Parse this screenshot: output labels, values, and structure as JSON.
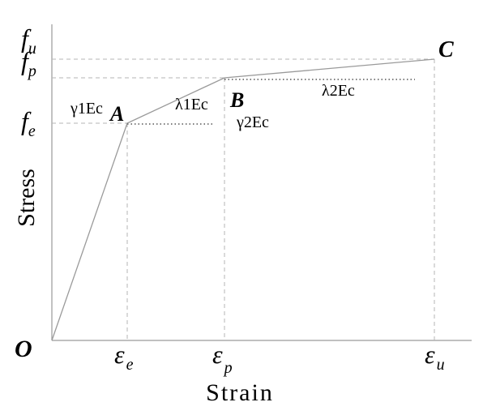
{
  "axes": {
    "x_label": "Strain",
    "y_label": "Stress"
  },
  "origin_label": "O",
  "points": {
    "a": "A",
    "b": "B",
    "c": "C"
  },
  "y_ticks": {
    "fu": {
      "base": "f",
      "sub": "u"
    },
    "fp": {
      "base": "f",
      "sub": "p"
    },
    "fe": {
      "base": "f",
      "sub": "e"
    }
  },
  "x_ticks": {
    "ee": {
      "base": "ε",
      "sub": "e"
    },
    "ep": {
      "base": "ε",
      "sub": "p"
    },
    "eu": {
      "base": "ε",
      "sub": "u"
    }
  },
  "annotations": {
    "gamma1": "γ1Ec",
    "lambda1": "λ1Ec",
    "gamma2": "γ2Ec",
    "lambda2": "λ2Ec"
  },
  "colors": {
    "curve": "#9a9a9a",
    "axis": "#9a9a9a",
    "guide_dashed": "#b5b5b5",
    "guide_dotted": "#333333",
    "text": "#000000"
  }
}
